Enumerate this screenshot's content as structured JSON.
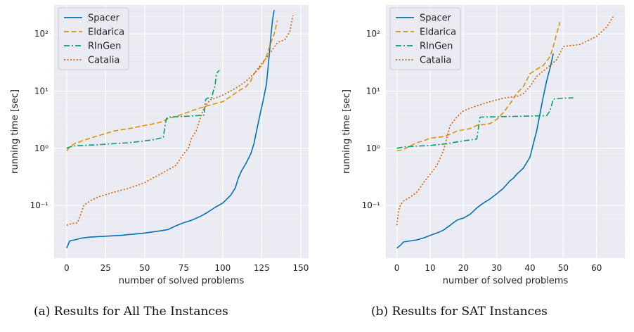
{
  "chart_data": [
    {
      "type": "line",
      "caption": "(a) Results for All The Instances",
      "xlabel": "number of solved problems",
      "ylabel": "running time [sec]",
      "xlim": [
        -8,
        155
      ],
      "ylim": [
        0.012,
        320
      ],
      "yscale": "log",
      "xticks": [
        0,
        25,
        50,
        75,
        100,
        125,
        150
      ],
      "xtick_labels": [
        "0",
        "25",
        "50",
        "75",
        "100",
        "125",
        "150"
      ],
      "yticks": [
        0.1,
        1,
        10,
        100
      ],
      "ytick_labels": [
        "10⁻¹",
        "10⁰",
        "10¹",
        "10²"
      ],
      "grid": true,
      "legend_position": "top-left",
      "series": [
        {
          "name": "Spacer",
          "color": "#0072b2",
          "dash": "solid",
          "x": [
            0,
            2,
            5,
            10,
            15,
            25,
            35,
            50,
            60,
            65,
            70,
            75,
            80,
            85,
            90,
            95,
            100,
            105,
            108,
            110,
            112,
            115,
            118,
            120,
            122,
            124,
            126,
            128,
            129,
            130,
            131,
            132,
            133
          ],
          "y": [
            0.018,
            0.024,
            0.025,
            0.027,
            0.028,
            0.029,
            0.03,
            0.033,
            0.036,
            0.038,
            0.044,
            0.05,
            0.055,
            0.063,
            0.075,
            0.092,
            0.11,
            0.15,
            0.2,
            0.3,
            0.4,
            0.55,
            0.8,
            1.2,
            2.2,
            4.0,
            7.0,
            13.0,
            25.0,
            50.0,
            100.0,
            180.0,
            260.0
          ]
        },
        {
          "name": "Eldarica",
          "color": "#de8f05",
          "dash": "dashed",
          "x": [
            0,
            2,
            5,
            10,
            15,
            20,
            25,
            30,
            35,
            40,
            45,
            50,
            55,
            60,
            62,
            65,
            70,
            75,
            80,
            85,
            90,
            95,
            100,
            105,
            110,
            115,
            118,
            120,
            125,
            128,
            130,
            133,
            135
          ],
          "y": [
            0.9,
            1.05,
            1.2,
            1.35,
            1.5,
            1.65,
            1.8,
            2.0,
            2.1,
            2.2,
            2.35,
            2.5,
            2.65,
            2.85,
            3.0,
            3.3,
            3.6,
            4.0,
            4.5,
            5.0,
            5.5,
            6.0,
            6.5,
            8.0,
            10.0,
            12.0,
            15.0,
            20.0,
            28.0,
            40.0,
            60.0,
            100.0,
            170.0
          ]
        },
        {
          "name": "RInGen",
          "color": "#029e73",
          "dash": "dashdot",
          "x": [
            0,
            2,
            5,
            10,
            20,
            30,
            40,
            50,
            55,
            62,
            63,
            64,
            65,
            70,
            75,
            80,
            85,
            88,
            89,
            90,
            93,
            94,
            95,
            96,
            97,
            98
          ],
          "y": [
            1.0,
            1.05,
            1.1,
            1.12,
            1.15,
            1.2,
            1.25,
            1.35,
            1.4,
            1.55,
            2.5,
            3.3,
            3.5,
            3.55,
            3.6,
            3.65,
            3.75,
            3.8,
            7.0,
            7.5,
            7.6,
            10.0,
            12.0,
            20.0,
            22.0,
            23.0
          ]
        },
        {
          "name": "Catalia",
          "color": "#d55e00",
          "dash": "dotted",
          "x": [
            0,
            3,
            7,
            9,
            11,
            15,
            20,
            30,
            40,
            50,
            55,
            60,
            65,
            70,
            75,
            78,
            80,
            83,
            85,
            88,
            90,
            92,
            95,
            100,
            105,
            110,
            115,
            120,
            125,
            130,
            135,
            140,
            143,
            145
          ],
          "y": [
            0.045,
            0.048,
            0.05,
            0.07,
            0.1,
            0.12,
            0.14,
            0.17,
            0.2,
            0.25,
            0.3,
            0.35,
            0.42,
            0.5,
            0.8,
            1.0,
            1.5,
            2.0,
            3.0,
            5.0,
            6.0,
            7.0,
            7.5,
            8.5,
            10.0,
            12.0,
            15.0,
            20.0,
            30.0,
            45.0,
            70.0,
            80.0,
            110.0,
            210.0
          ]
        }
      ]
    },
    {
      "type": "line",
      "caption": "(b) Results for SAT Instances",
      "xlabel": "number of solved problems",
      "ylabel": "running time [sec]",
      "xlim": [
        -3.3,
        68.5
      ],
      "ylim": [
        0.012,
        320
      ],
      "yscale": "log",
      "xticks": [
        0,
        10,
        20,
        30,
        40,
        50,
        60
      ],
      "xtick_labels": [
        "0",
        "10",
        "20",
        "30",
        "40",
        "50",
        "60"
      ],
      "yticks": [
        0.1,
        1,
        10,
        100
      ],
      "ytick_labels": [
        "10⁻¹",
        "10⁰",
        "10¹",
        "10²"
      ],
      "grid": true,
      "legend_position": "top-left",
      "series": [
        {
          "name": "Spacer",
          "color": "#0072b2",
          "dash": "solid",
          "x": [
            0,
            1,
            2,
            4,
            6,
            8,
            10,
            12,
            14,
            16,
            17,
            18,
            19,
            20,
            22,
            24,
            25,
            26,
            28,
            30,
            32,
            34,
            35,
            36,
            38,
            40,
            41,
            42,
            43,
            44,
            45,
            46,
            47
          ],
          "y": [
            0.018,
            0.02,
            0.023,
            0.024,
            0.025,
            0.027,
            0.03,
            0.033,
            0.037,
            0.045,
            0.05,
            0.055,
            0.058,
            0.06,
            0.07,
            0.09,
            0.1,
            0.11,
            0.13,
            0.16,
            0.2,
            0.27,
            0.3,
            0.35,
            0.45,
            0.7,
            1.2,
            2.0,
            4.0,
            8.0,
            15.0,
            25.0,
            45.0
          ]
        },
        {
          "name": "Eldarica",
          "color": "#de8f05",
          "dash": "dashed",
          "x": [
            0,
            2,
            4,
            6,
            8,
            10,
            12,
            14,
            16,
            18,
            20,
            22,
            24,
            26,
            28,
            30,
            32,
            34,
            36,
            38,
            40,
            42,
            44,
            46,
            47,
            48,
            49
          ],
          "y": [
            0.9,
            0.95,
            1.1,
            1.25,
            1.35,
            1.5,
            1.55,
            1.6,
            1.75,
            2.0,
            2.1,
            2.2,
            2.5,
            2.6,
            2.7,
            3.2,
            4.2,
            6.0,
            9.0,
            12.0,
            20.0,
            24.0,
            28.0,
            40.0,
            60.0,
            100.0,
            160.0
          ]
        },
        {
          "name": "RInGen",
          "color": "#029e73",
          "dash": "dashdot",
          "x": [
            0,
            2,
            5,
            10,
            15,
            20,
            24,
            25,
            30,
            35,
            40,
            45,
            46,
            47,
            48,
            50,
            53
          ],
          "y": [
            1.0,
            1.05,
            1.08,
            1.12,
            1.2,
            1.35,
            1.45,
            3.5,
            3.55,
            3.6,
            3.65,
            3.7,
            4.5,
            7.2,
            7.4,
            7.5,
            7.6
          ]
        },
        {
          "name": "Catalia",
          "color": "#d55e00",
          "dash": "dotted",
          "x": [
            0,
            0.5,
            1,
            2,
            4,
            6,
            8,
            10,
            12,
            14,
            15,
            16,
            18,
            20,
            22,
            24,
            26,
            28,
            30,
            32,
            34,
            36,
            38,
            40,
            42,
            45,
            48,
            50,
            55,
            60,
            63,
            65
          ],
          "y": [
            0.045,
            0.08,
            0.1,
            0.12,
            0.14,
            0.17,
            0.25,
            0.35,
            0.5,
            0.9,
            1.5,
            2.5,
            3.5,
            4.5,
            5.0,
            5.5,
            6.0,
            6.5,
            7.0,
            7.5,
            7.8,
            8.0,
            9.0,
            12.0,
            18.0,
            25.0,
            35.0,
            60.0,
            65.0,
            90.0,
            130.0,
            200.0
          ]
        }
      ]
    }
  ]
}
